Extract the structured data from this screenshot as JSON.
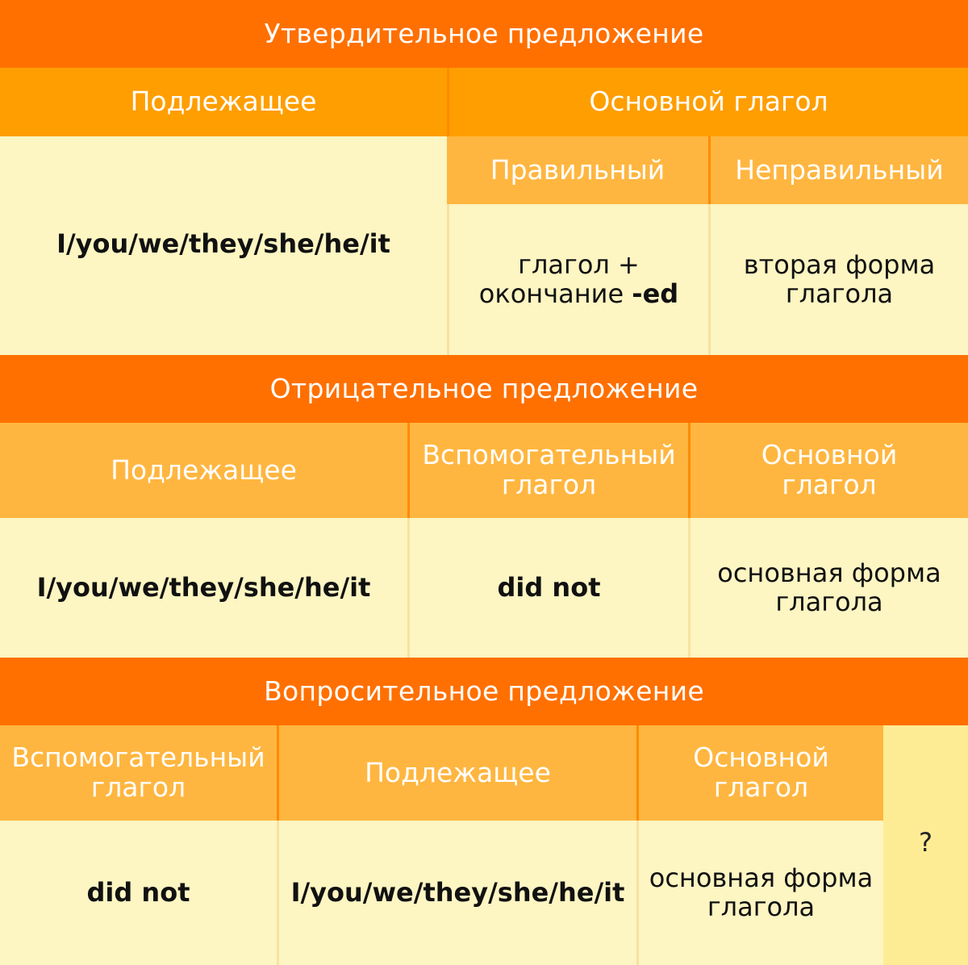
{
  "affirmative": {
    "title": "Утвердительное предложение",
    "subject_header": "Подлежащее",
    "main_verb_header": "Основной глагол",
    "regular_header": "Правильный",
    "irregular_header": "Неправильный",
    "subject_value": "I/you/we/they/she/he/it",
    "regular_value_line1": "глагол +",
    "regular_value_prefix": "окончание ",
    "regular_value_suffix": "-ed",
    "irregular_value": "вторая форма глагола"
  },
  "negative": {
    "title": "Отрицательное предложение",
    "subject_header": "Подлежащее",
    "aux_header": "Вспомогательный глагол",
    "main_verb_header": "Основной глагол",
    "subject_value": "I/you/we/they/she/he/it",
    "aux_value": "did not",
    "main_verb_value": "основная форма глагола"
  },
  "interrogative": {
    "title": "Вопросительное предложение",
    "aux_header": "Вспомогательный глагол",
    "subject_header": "Подлежащее",
    "main_verb_header": "Основной глагол",
    "aux_value": "did not",
    "subject_value": "I/you/we/they/she/he/it",
    "main_verb_value": "основная форма глагола",
    "question_mark": "?"
  }
}
